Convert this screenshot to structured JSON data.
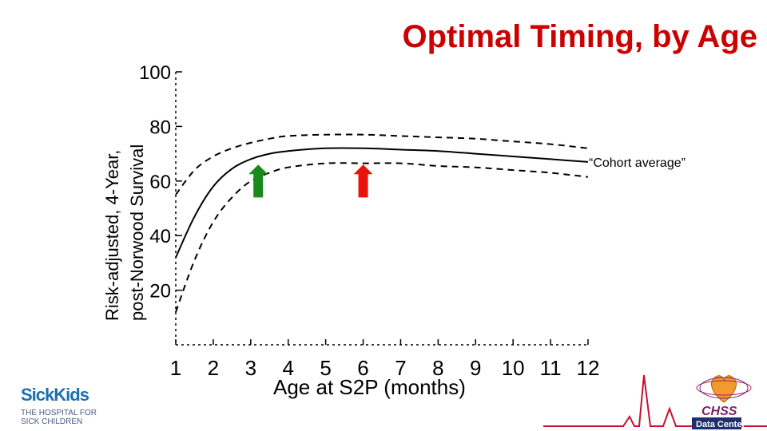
{
  "slide": {
    "title": "Optimal Timing, by Age"
  },
  "logos": {
    "left": {
      "name": "SickKids",
      "tagline_1": "THE HOSPITAL FOR",
      "tagline_2": "SICK CHILDREN"
    },
    "right": {
      "name": "CHSS",
      "subtitle": "Data Center"
    }
  },
  "colors": {
    "title": "#cc0000",
    "arrow_green": "#1a8a1a",
    "arrow_red": "#e8140c"
  },
  "chart_data": {
    "type": "line",
    "title": "",
    "xlabel": "Age at S2P (months)",
    "ylabel_line1": "Risk-adjusted, 4-Year,",
    "ylabel_line2": "post-Norwood Survival",
    "xlim": [
      1,
      12
    ],
    "ylim": [
      0,
      100
    ],
    "x_ticks": [
      1,
      2,
      3,
      4,
      5,
      6,
      7,
      8,
      9,
      10,
      11,
      12
    ],
    "y_ticks": [
      20,
      40,
      60,
      80,
      100
    ],
    "grid": false,
    "series": [
      {
        "style": "solid",
        "x": [
          1,
          1.5,
          2,
          2.5,
          3,
          3.5,
          4,
          5,
          6,
          7,
          8,
          9,
          10,
          11,
          12
        ],
        "y": [
          32,
          47,
          58,
          64.5,
          68,
          70,
          71,
          72,
          72,
          71.5,
          71,
          70,
          69,
          68,
          67
        ]
      },
      {
        "style": "dashed",
        "x": [
          1,
          1.5,
          2,
          2.5,
          3,
          3.5,
          4,
          5,
          6,
          7,
          8,
          9,
          10,
          11,
          12
        ],
        "y": [
          55,
          64,
          69,
          72,
          74,
          75.5,
          76.5,
          77,
          77,
          76.5,
          76,
          75.5,
          74.5,
          73.5,
          72
        ]
      },
      {
        "style": "dashed",
        "x": [
          1,
          1.5,
          2,
          2.5,
          3,
          3.5,
          4,
          5,
          6,
          7,
          8,
          9,
          10,
          11,
          12
        ],
        "y": [
          12,
          31,
          45,
          54,
          60,
          63,
          65,
          66.5,
          66.5,
          66.5,
          65.5,
          65,
          64,
          63,
          61.5
        ]
      }
    ],
    "markers": [
      {
        "x": 3.2,
        "y_tip": 66,
        "y_base": 54,
        "color": "green"
      },
      {
        "x": 6.0,
        "y_tip": 66,
        "y_base": 54,
        "color": "red"
      }
    ],
    "annotations": [
      {
        "text": "“Cohort average”"
      }
    ]
  }
}
